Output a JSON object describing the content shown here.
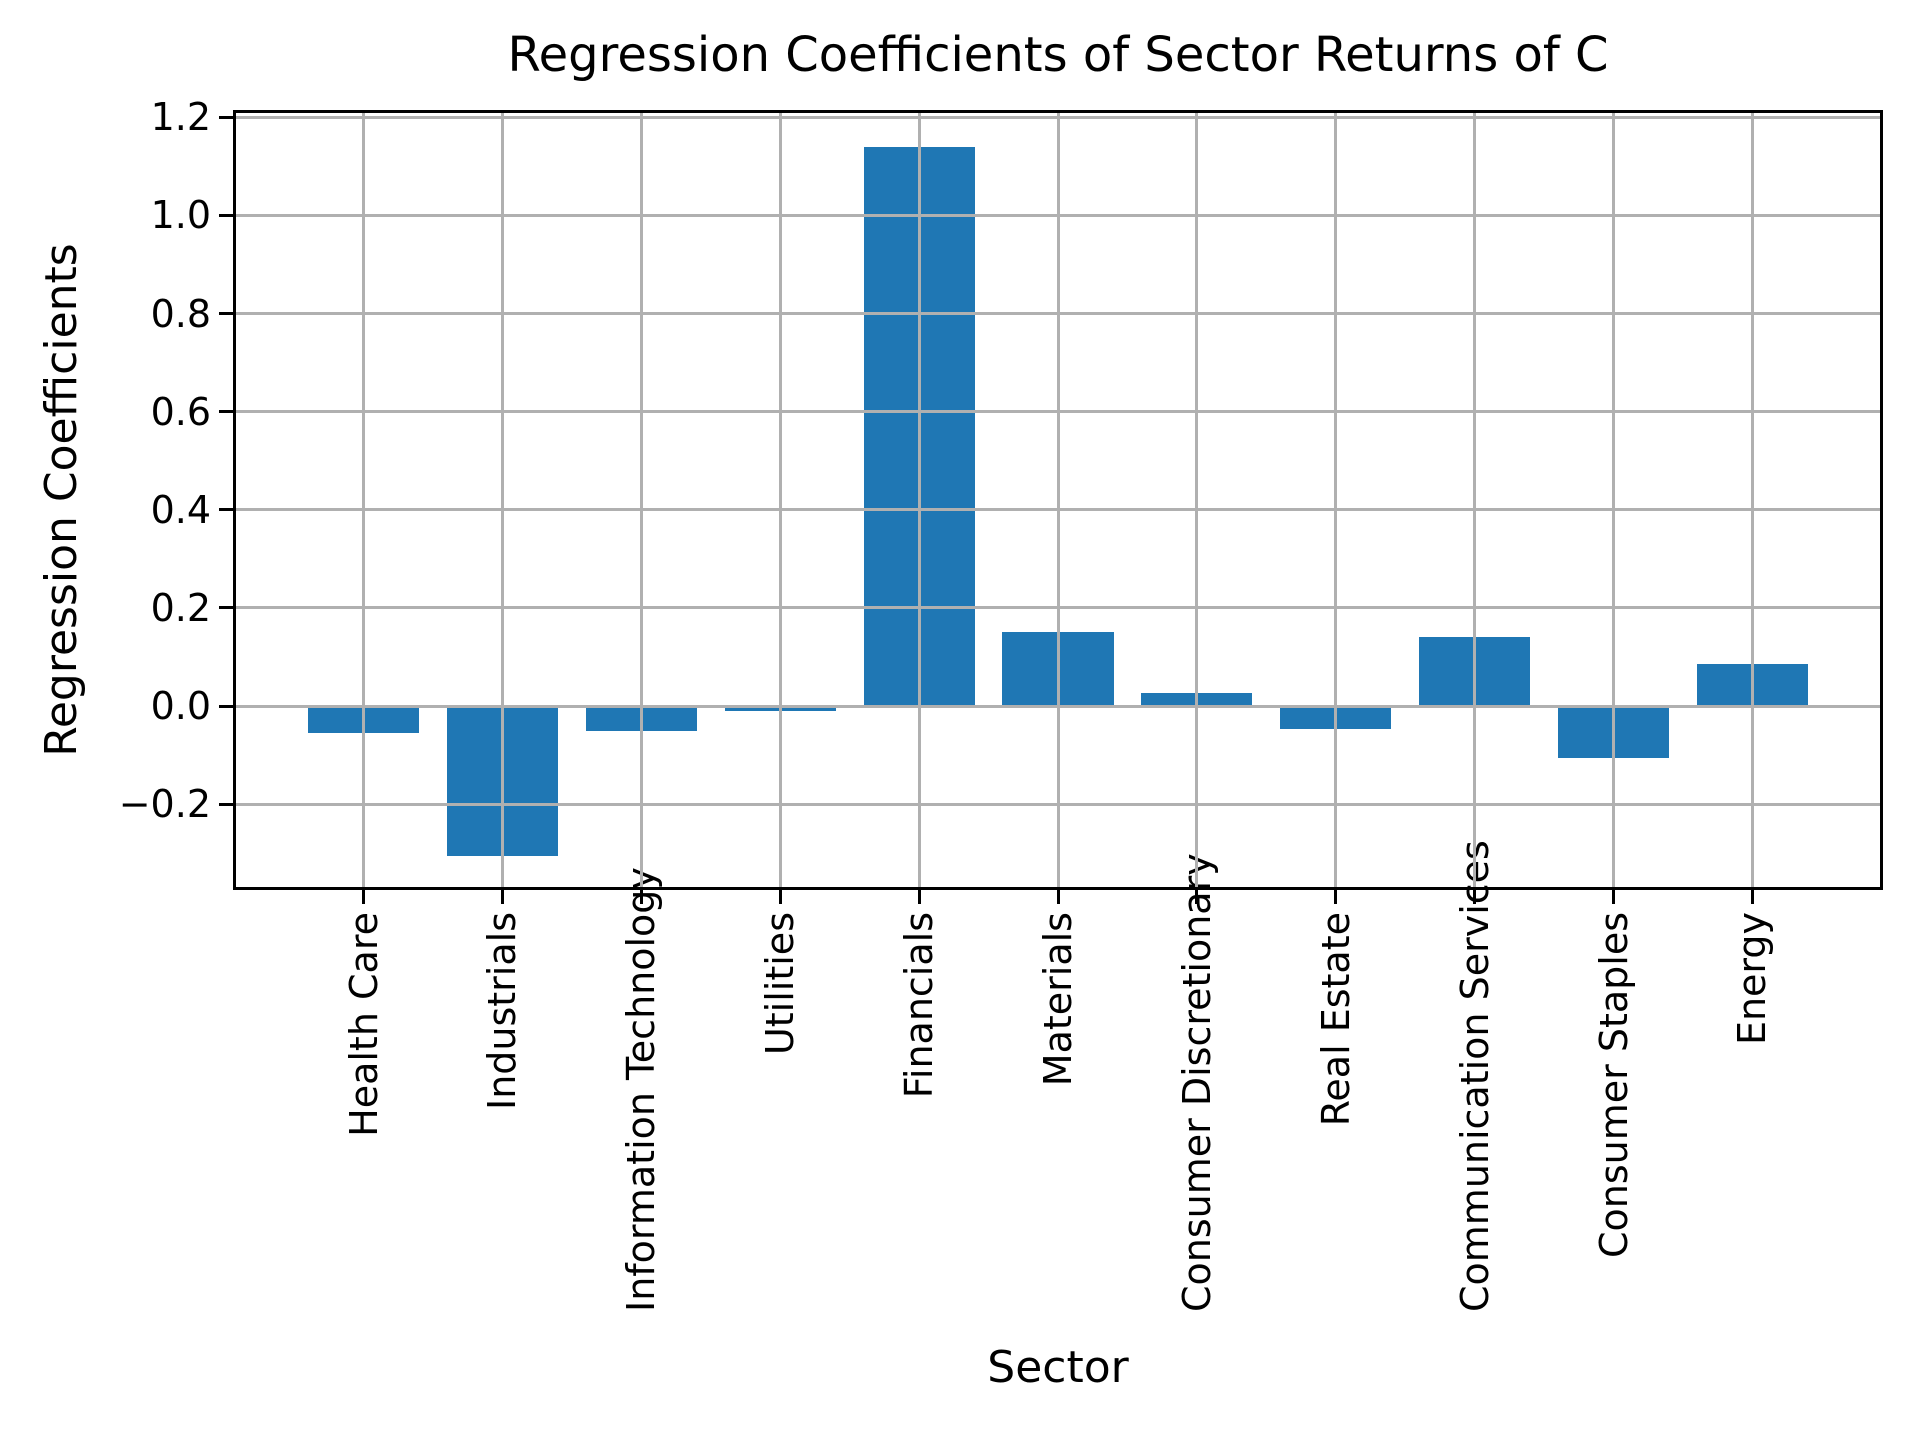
{
  "figure": {
    "title": "Regression Coefficients of Sector Returns of C",
    "xlabel": "Sector",
    "ylabel": "Regression Coefficients"
  },
  "chart_data": {
    "type": "bar",
    "title": "Regression Coefficients of Sector Returns of C",
    "xlabel": "Sector",
    "ylabel": "Regression Coefficients",
    "categories": [
      "Health Care",
      "Industrials",
      "Information Technology",
      "Utilities",
      "Financials",
      "Materials",
      "Consumer Discretionary",
      "Real Estate",
      "Communication Services",
      "Consumer Staples",
      "Energy"
    ],
    "values": [
      -0.055,
      -0.305,
      -0.051,
      -0.01,
      1.14,
      0.15,
      0.026,
      -0.047,
      0.14,
      -0.105,
      0.085
    ],
    "ylim": [
      -0.375,
      1.215
    ],
    "yticks": [
      1.2,
      1.0,
      0.8,
      0.6,
      0.4,
      0.2,
      0.0,
      -0.2
    ],
    "grid": true,
    "grid_on_top_of_bars": true,
    "legend": "none",
    "bar_color": "#1f77b4",
    "grid_color": "#b0b0b0",
    "axis_color": "#000000",
    "background": "#ffffff"
  }
}
